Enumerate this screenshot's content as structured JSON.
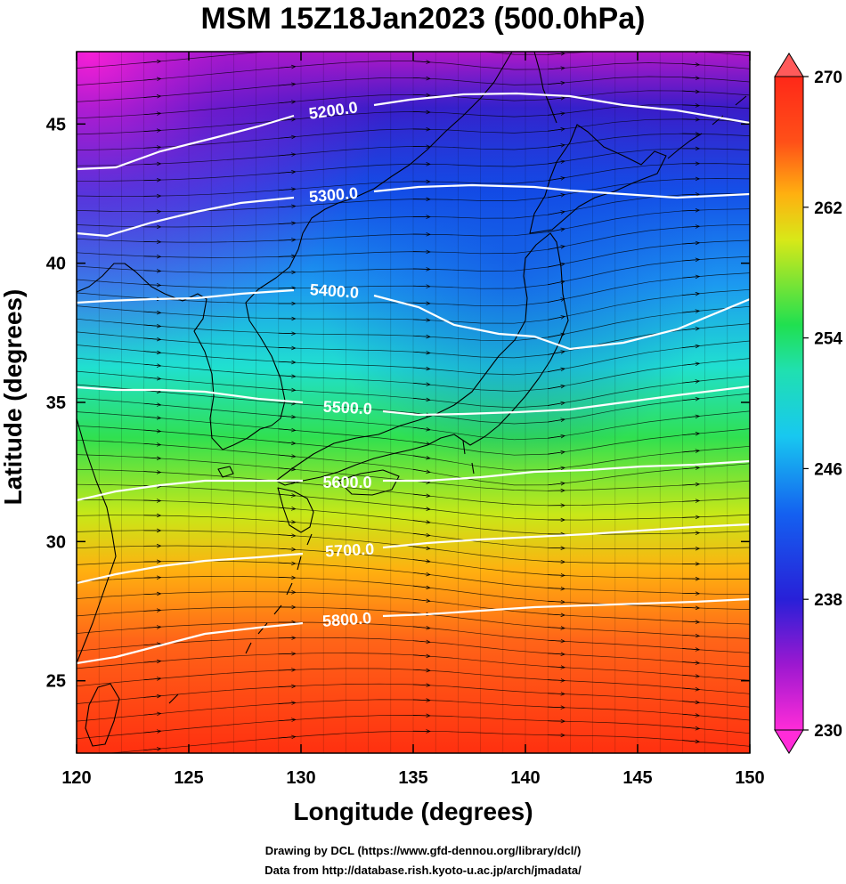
{
  "title": "MSM 15Z18Jan2023 (500.0hPa)",
  "axes": {
    "xlabel": "Longitude (degrees)",
    "ylabel": "Latitude  (degrees)",
    "x_ticks": [
      "120",
      "125",
      "130",
      "135",
      "140",
      "145",
      "150"
    ],
    "y_ticks": [
      "25",
      "30",
      "35",
      "40",
      "45"
    ],
    "x_range": [
      120,
      150
    ],
    "y_range": [
      22.4,
      47.6
    ]
  },
  "colorbar": {
    "ticks": [
      "230",
      "238",
      "246",
      "254",
      "262",
      "270"
    ],
    "range": [
      230,
      270
    ],
    "colormap": [
      "#ff2cd8",
      "#9c18d0",
      "#2820d8",
      "#1460f0",
      "#18c8f0",
      "#20e070",
      "#48e018",
      "#d8e818",
      "#ffb010",
      "#ff5018",
      "#ff2818",
      "#ff5a5a"
    ]
  },
  "contours": {
    "levels": [
      "5200.0",
      "5300.0",
      "5400.0",
      "5500.0",
      "5600.0",
      "5700.0",
      "5800.0"
    ],
    "color": "#ffffff"
  },
  "credits": {
    "line1": "Drawing by DCL (https://www.gfd-dennou.org/library/dcl/)",
    "line2": "Data from http://database.rish.kyoto-u.ac.jp/arch/jmadata/"
  },
  "map": {
    "projection": "lon-lat",
    "coastline_color": "#000000",
    "wind_streamlines": "westerly"
  }
}
